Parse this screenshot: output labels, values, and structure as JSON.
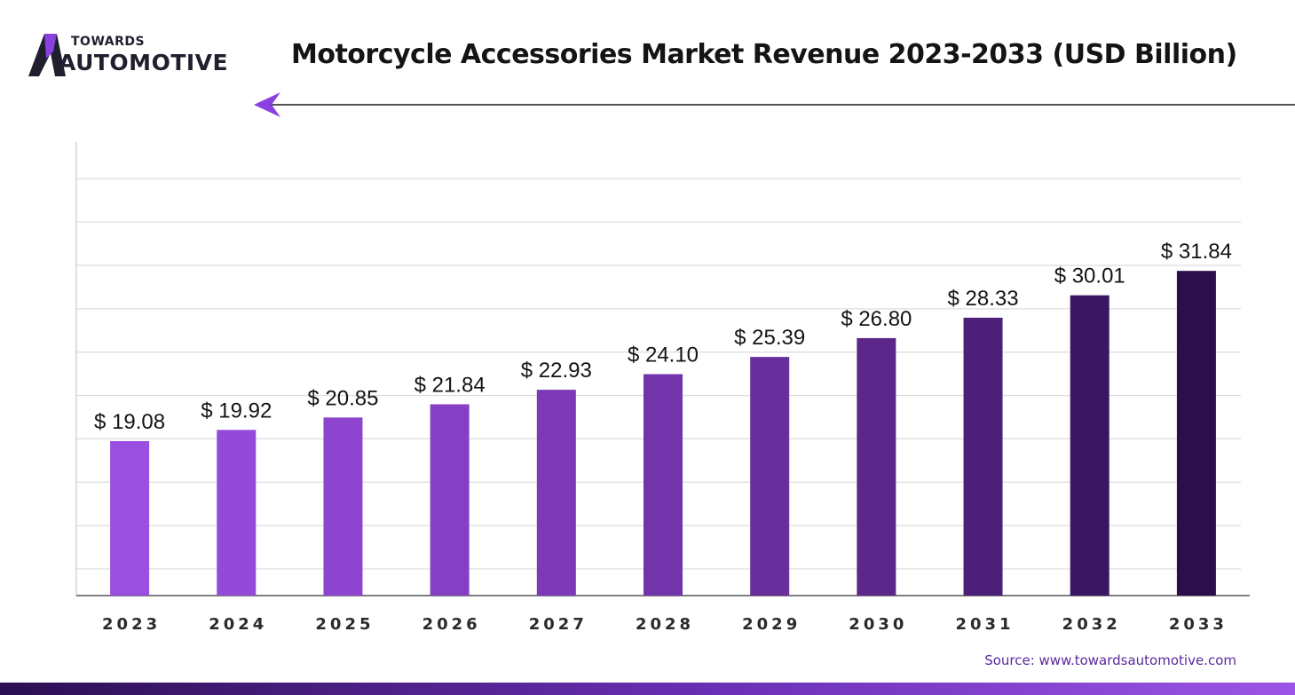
{
  "logo": {
    "line1": "TOWARDS",
    "line2": "AUTOMOTIVE"
  },
  "header": {
    "title": "Motorcycle Accessories Market Revenue 2023-2033 (USD Billion)"
  },
  "chart_data": {
    "type": "bar",
    "title": "Motorcycle Accessories Market Revenue 2023-2033 (USD Billion)",
    "xlabel": "",
    "ylabel": "",
    "categories": [
      "2023",
      "2024",
      "2025",
      "2026",
      "2027",
      "2028",
      "2029",
      "2030",
      "2031",
      "2032",
      "2033"
    ],
    "values": [
      19.08,
      19.92,
      20.85,
      21.84,
      22.93,
      24.1,
      25.39,
      26.8,
      28.33,
      30.01,
      31.84
    ],
    "value_labels": [
      "$ 19.08",
      "$ 19.92",
      "$ 20.85",
      "$ 21.84",
      "$ 22.93",
      "$ 24.10",
      "$ 25.39",
      "$ 26.80",
      "$ 28.33",
      "$ 30.01",
      "$ 31.84"
    ],
    "ylim": [
      7.5,
      41.5
    ],
    "y_gridlines": [
      9.5,
      12.75,
      16,
      19.25,
      22.5,
      25.75,
      29,
      32.25,
      35.5,
      38.75
    ],
    "grid": true,
    "legend": "none",
    "bar_colors": [
      "#9b4fe0",
      "#9449d8",
      "#8d44ce",
      "#853fc4",
      "#7c39b8",
      "#7234ab",
      "#672e9c",
      "#5b278b",
      "#4c1f78",
      "#3b1763",
      "#2a0f4b"
    ]
  },
  "colors": {
    "brand": "#7b3fd0",
    "text": "#141414",
    "source": "#5b2a9e"
  },
  "source": {
    "text": "Source: www.towardsautomotive.com"
  }
}
